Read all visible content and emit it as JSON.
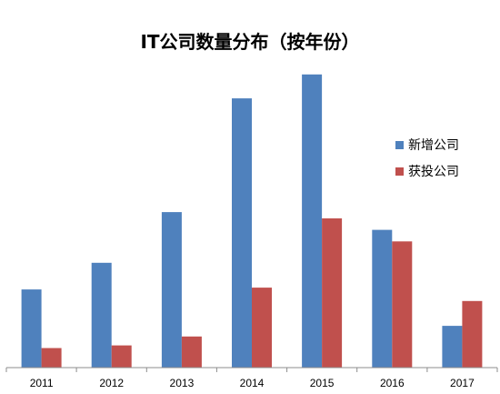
{
  "chart_data": {
    "type": "bar",
    "title": "IT公司数量分布（按年份）",
    "xlabel": "",
    "ylabel": "",
    "categories": [
      "2011",
      "2012",
      "2013",
      "2014",
      "2015",
      "2016",
      "2017"
    ],
    "series": [
      {
        "name": "新增公司",
        "color": "#4f81bd",
        "values": [
          88,
          118,
          175,
          303,
          330,
          155,
          47
        ]
      },
      {
        "name": "获投公司",
        "color": "#c0504d",
        "values": [
          22,
          25,
          35,
          90,
          168,
          142,
          75
        ]
      }
    ],
    "ylim": [
      0,
      340
    ],
    "grid": false,
    "legend_position": "right"
  }
}
